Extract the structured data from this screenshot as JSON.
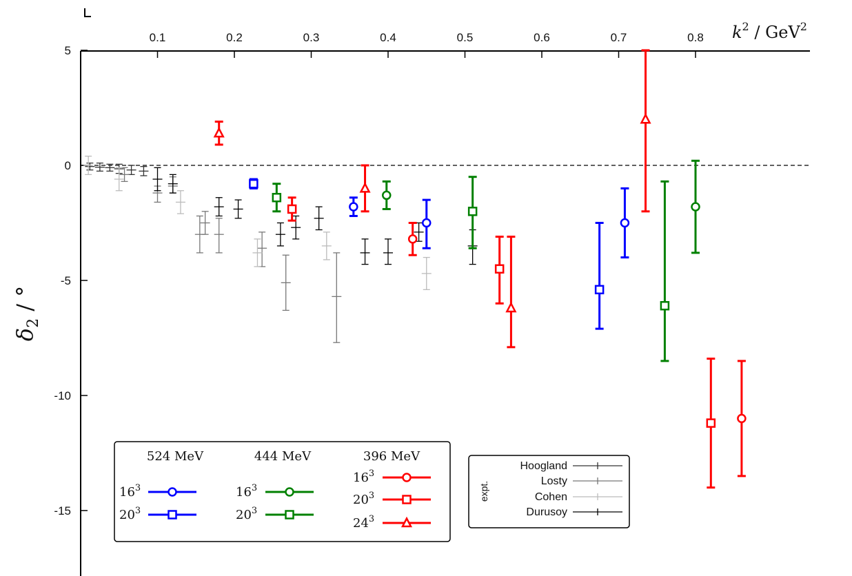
{
  "chart_data": {
    "type": "scatter",
    "title": "",
    "xlabel": "k² / GeV²",
    "ylabel": "δ₂ / °",
    "xlim": [
      0,
      0.845
    ],
    "ylim": [
      -18,
      5
    ],
    "xticks": [
      0.1,
      0.2,
      0.3,
      0.4,
      0.5,
      0.6,
      0.7,
      0.8
    ],
    "xtick_labels": [
      "0.1",
      "0.2",
      "0.3",
      "0.4",
      "0.5",
      "0.6",
      "0.7",
      "0.8"
    ],
    "yticks": [
      5,
      0,
      -5,
      -10,
      -15
    ],
    "ytick_labels": [
      "5",
      "0",
      "-5",
      "-10",
      "-15"
    ],
    "x_axis_position": "top",
    "zero_line": true,
    "grid": false,
    "lattice_series": [
      {
        "mass": "524 MeV",
        "volume": "16",
        "color": "#0000ff",
        "marker": "circle",
        "points": [
          {
            "x": 0.355,
            "y": -1.8,
            "lo": -2.2,
            "hi": -1.4
          },
          {
            "x": 0.45,
            "y": -2.5,
            "lo": -3.6,
            "hi": -1.5
          },
          {
            "x": 0.708,
            "y": -2.5,
            "lo": -4.0,
            "hi": -1.0
          }
        ]
      },
      {
        "mass": "524 MeV",
        "volume": "20",
        "color": "#0000ff",
        "marker": "square",
        "points": [
          {
            "x": 0.225,
            "y": -0.8,
            "lo": -1.0,
            "hi": -0.6
          },
          {
            "x": 0.675,
            "y": -5.4,
            "lo": -7.1,
            "hi": -2.5
          }
        ]
      },
      {
        "mass": "444 MeV",
        "volume": "16",
        "color": "#008000",
        "marker": "circle",
        "points": [
          {
            "x": 0.398,
            "y": -1.3,
            "lo": -1.9,
            "hi": -0.7
          },
          {
            "x": 0.8,
            "y": -1.8,
            "lo": -3.8,
            "hi": 0.2
          }
        ]
      },
      {
        "mass": "444 MeV",
        "volume": "20",
        "color": "#008000",
        "marker": "square",
        "points": [
          {
            "x": 0.255,
            "y": -1.4,
            "lo": -2.0,
            "hi": -0.8
          },
          {
            "x": 0.51,
            "y": -2.0,
            "lo": -3.6,
            "hi": -0.5
          },
          {
            "x": 0.76,
            "y": -6.1,
            "lo": -8.5,
            "hi": -0.7
          }
        ]
      },
      {
        "mass": "396 MeV",
        "volume": "16",
        "color": "#ff0000",
        "marker": "circle",
        "points": [
          {
            "x": 0.432,
            "y": -3.2,
            "lo": -3.9,
            "hi": -2.5
          },
          {
            "x": 0.86,
            "y": -11.0,
            "lo": -13.5,
            "hi": -8.5
          }
        ]
      },
      {
        "mass": "396 MeV",
        "volume": "20",
        "color": "#ff0000",
        "marker": "square",
        "points": [
          {
            "x": 0.275,
            "y": -1.9,
            "lo": -2.4,
            "hi": -1.4
          },
          {
            "x": 0.545,
            "y": -4.5,
            "lo": -6.0,
            "hi": -3.1
          },
          {
            "x": 0.82,
            "y": -11.2,
            "lo": -14.0,
            "hi": -8.4
          }
        ]
      },
      {
        "mass": "396 MeV",
        "volume": "24",
        "color": "#ff0000",
        "marker": "triangle",
        "points": [
          {
            "x": 0.18,
            "y": 1.4,
            "lo": 0.9,
            "hi": 1.9
          },
          {
            "x": 0.37,
            "y": -1.0,
            "lo": -2.0,
            "hi": 0.0
          },
          {
            "x": 0.56,
            "y": -6.2,
            "lo": -7.9,
            "hi": -3.1
          },
          {
            "x": 0.735,
            "y": 2.0,
            "lo": -2.0,
            "hi": 5.0
          }
        ]
      }
    ],
    "experimental_series": [
      {
        "name": "Hoogland",
        "color": "#333333",
        "points": [
          {
            "x": 0.012,
            "y": -0.05,
            "lo": -0.2,
            "hi": 0.1
          },
          {
            "x": 0.025,
            "y": -0.08,
            "lo": -0.25,
            "hi": 0.1
          },
          {
            "x": 0.038,
            "y": -0.1,
            "lo": -0.25,
            "hi": 0.05
          },
          {
            "x": 0.05,
            "y": -0.15,
            "lo": -0.35,
            "hi": 0.05
          },
          {
            "x": 0.066,
            "y": -0.2,
            "lo": -0.4,
            "hi": 0.0
          },
          {
            "x": 0.082,
            "y": -0.25,
            "lo": -0.45,
            "hi": -0.05
          }
        ]
      },
      {
        "name": "Losty",
        "color": "#777777",
        "points": [
          {
            "x": 0.057,
            "y": -0.4,
            "lo": -0.7,
            "hi": -0.1
          },
          {
            "x": 0.1,
            "y": -1.2,
            "lo": -1.6,
            "hi": -0.9
          },
          {
            "x": 0.12,
            "y": -0.9,
            "lo": -1.2,
            "hi": -0.5
          },
          {
            "x": 0.155,
            "y": -3.0,
            "lo": -3.8,
            "hi": -2.2
          },
          {
            "x": 0.162,
            "y": -2.5,
            "lo": -3.0,
            "hi": -2.0
          },
          {
            "x": 0.18,
            "y": -3.0,
            "lo": -3.8,
            "hi": -2.3
          },
          {
            "x": 0.236,
            "y": -3.6,
            "lo": -4.4,
            "hi": -2.9
          },
          {
            "x": 0.267,
            "y": -5.1,
            "lo": -6.3,
            "hi": -3.9
          },
          {
            "x": 0.333,
            "y": -5.7,
            "lo": -7.7,
            "hi": -3.8
          }
        ]
      },
      {
        "name": "Cohen",
        "color": "#bbbbbb",
        "points": [
          {
            "x": 0.01,
            "y": 0.0,
            "lo": -0.4,
            "hi": 0.4
          },
          {
            "x": 0.05,
            "y": -0.6,
            "lo": -1.1,
            "hi": -0.1
          },
          {
            "x": 0.13,
            "y": -1.6,
            "lo": -2.1,
            "hi": -1.1
          },
          {
            "x": 0.23,
            "y": -3.8,
            "lo": -4.4,
            "hi": -3.2
          },
          {
            "x": 0.32,
            "y": -3.5,
            "lo": -4.1,
            "hi": -2.9
          },
          {
            "x": 0.45,
            "y": -4.7,
            "lo": -5.4,
            "hi": -4.0
          }
        ]
      },
      {
        "name": "Durusoy",
        "color": "#000000",
        "points": [
          {
            "x": 0.1,
            "y": -0.6,
            "lo": -1.1,
            "hi": -0.1
          },
          {
            "x": 0.12,
            "y": -0.8,
            "lo": -1.2,
            "hi": -0.4
          },
          {
            "x": 0.18,
            "y": -1.8,
            "lo": -2.2,
            "hi": -1.4
          },
          {
            "x": 0.205,
            "y": -1.9,
            "lo": -2.3,
            "hi": -1.5
          },
          {
            "x": 0.26,
            "y": -3.0,
            "lo": -3.5,
            "hi": -2.5
          },
          {
            "x": 0.28,
            "y": -2.7,
            "lo": -3.2,
            "hi": -2.2
          },
          {
            "x": 0.31,
            "y": -2.3,
            "lo": -2.8,
            "hi": -1.8
          },
          {
            "x": 0.37,
            "y": -3.8,
            "lo": -4.3,
            "hi": -3.2
          },
          {
            "x": 0.4,
            "y": -3.8,
            "lo": -4.3,
            "hi": -3.2
          },
          {
            "x": 0.44,
            "y": -2.9,
            "lo": -3.3,
            "hi": -2.5
          },
          {
            "x": 0.51,
            "y": -3.5,
            "lo": -4.3,
            "hi": -2.8
          }
        ]
      }
    ],
    "legend": {
      "lattice": {
        "headers": [
          "524 MeV",
          "444 MeV",
          "396 MeV"
        ],
        "rows": [
          {
            "label": "16",
            "sup": "3",
            "series_index": 0
          },
          {
            "label": "20",
            "sup": "3",
            "series_index": 1
          },
          {
            "label": "16",
            "sup": "3",
            "series_index": 2
          },
          {
            "label": "20",
            "sup": "3",
            "series_index": 3
          },
          {
            "label": "16",
            "sup": "3",
            "series_index": 4
          },
          {
            "label": "20",
            "sup": "3",
            "series_index": 5
          },
          {
            "label": "24",
            "sup": "3",
            "series_index": 6
          }
        ]
      },
      "experimental": {
        "side_label": "expt.",
        "entries": [
          "Hoogland",
          "Losty",
          "Cohen",
          "Durusoy"
        ]
      }
    }
  }
}
